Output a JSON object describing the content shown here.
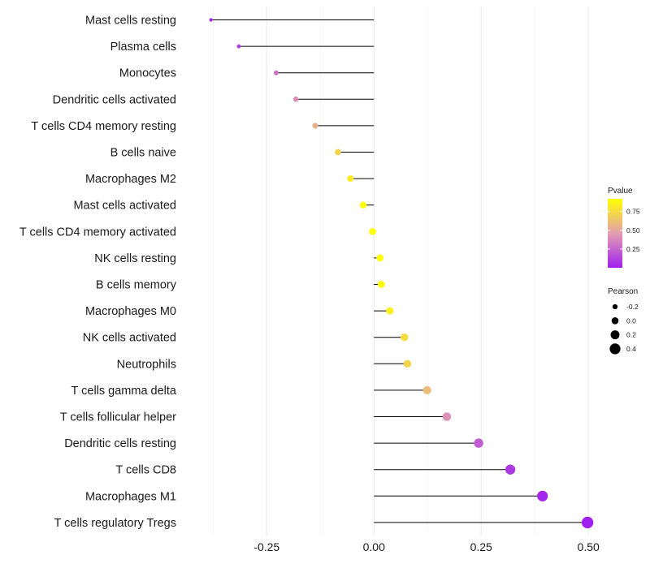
{
  "chart_data": {
    "type": "lollipop",
    "title": "",
    "xlabel": "",
    "ylabel": "",
    "xlim": [
      -0.44,
      0.53
    ],
    "xticks": [
      -0.25,
      0.0,
      0.25,
      0.5
    ],
    "xtick_labels": [
      "-0.25",
      "0.00",
      "0.25",
      "0.50"
    ],
    "grid": true,
    "categories": [
      "Mast cells resting",
      "Plasma cells",
      "Monocytes",
      "Dendritic cells activated",
      "T cells CD4 memory resting",
      "B cells naive",
      "Macrophages M2",
      "Mast cells activated",
      "T cells CD4 memory activated",
      "NK cells resting",
      "B cells memory",
      "Macrophages M0",
      "NK cells activated",
      "Neutrophils",
      "T cells gamma delta",
      "T cells follicular helper",
      "Dendritic cells resting",
      "T cells CD8",
      "Macrophages M1",
      "T cells regulatory  Tregs"
    ],
    "pearson": [
      -0.38,
      -0.315,
      -0.228,
      -0.182,
      -0.137,
      -0.084,
      -0.055,
      -0.025,
      -0.003,
      0.014,
      0.017,
      0.037,
      0.071,
      0.078,
      0.124,
      0.17,
      0.244,
      0.318,
      0.393,
      0.498
    ],
    "pvalue": [
      0.02,
      0.12,
      0.3,
      0.4,
      0.55,
      0.72,
      0.83,
      0.93,
      0.99,
      0.95,
      0.92,
      0.85,
      0.75,
      0.72,
      0.6,
      0.42,
      0.22,
      0.09,
      0.03,
      0.001
    ],
    "legend": {
      "pvalue": {
        "title": "Pvalue",
        "ticks": [
          0.25,
          0.5,
          0.75
        ],
        "tick_labels": [
          "0.25",
          "0.50",
          "0.75"
        ],
        "range": [
          0.0,
          0.92
        ],
        "color_low": "#A020F0",
        "color_mid": "#E39EB0",
        "color_high": "#FFFF00",
        "placement": "right"
      },
      "pearson": {
        "title": "Pearson",
        "values": [
          -0.2,
          0.0,
          0.2,
          0.4
        ],
        "labels": [
          "-0.2",
          "0.0",
          "0.2",
          "0.4"
        ],
        "placement": "right"
      }
    }
  }
}
